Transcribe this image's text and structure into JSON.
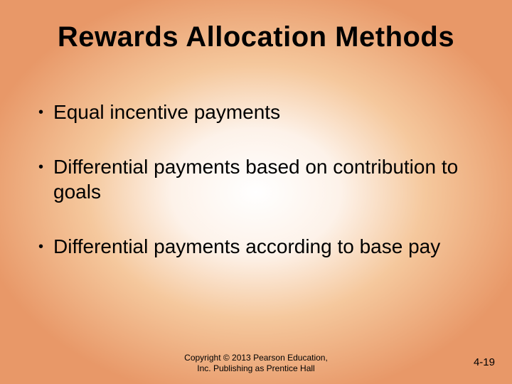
{
  "title": "Rewards Allocation Methods",
  "bullets": [
    "Equal incentive payments",
    "Differential payments based on contribution to goals",
    "Differential payments according to base pay"
  ],
  "copyright_line1": "Copyright © 2013 Pearson Education,",
  "copyright_line2": "Inc. Publishing as Prentice Hall",
  "page_number": "4-19",
  "style": {
    "background_gradient_center": "#ffffff",
    "background_gradient_mid": "#f5c89d",
    "background_gradient_outer": "#e89868",
    "title_fontsize": 40,
    "title_weight": "bold",
    "bullet_fontsize": 28,
    "copyright_fontsize": 12,
    "pagenum_fontsize": 15,
    "text_color": "#000000",
    "font_family": "Arial"
  }
}
